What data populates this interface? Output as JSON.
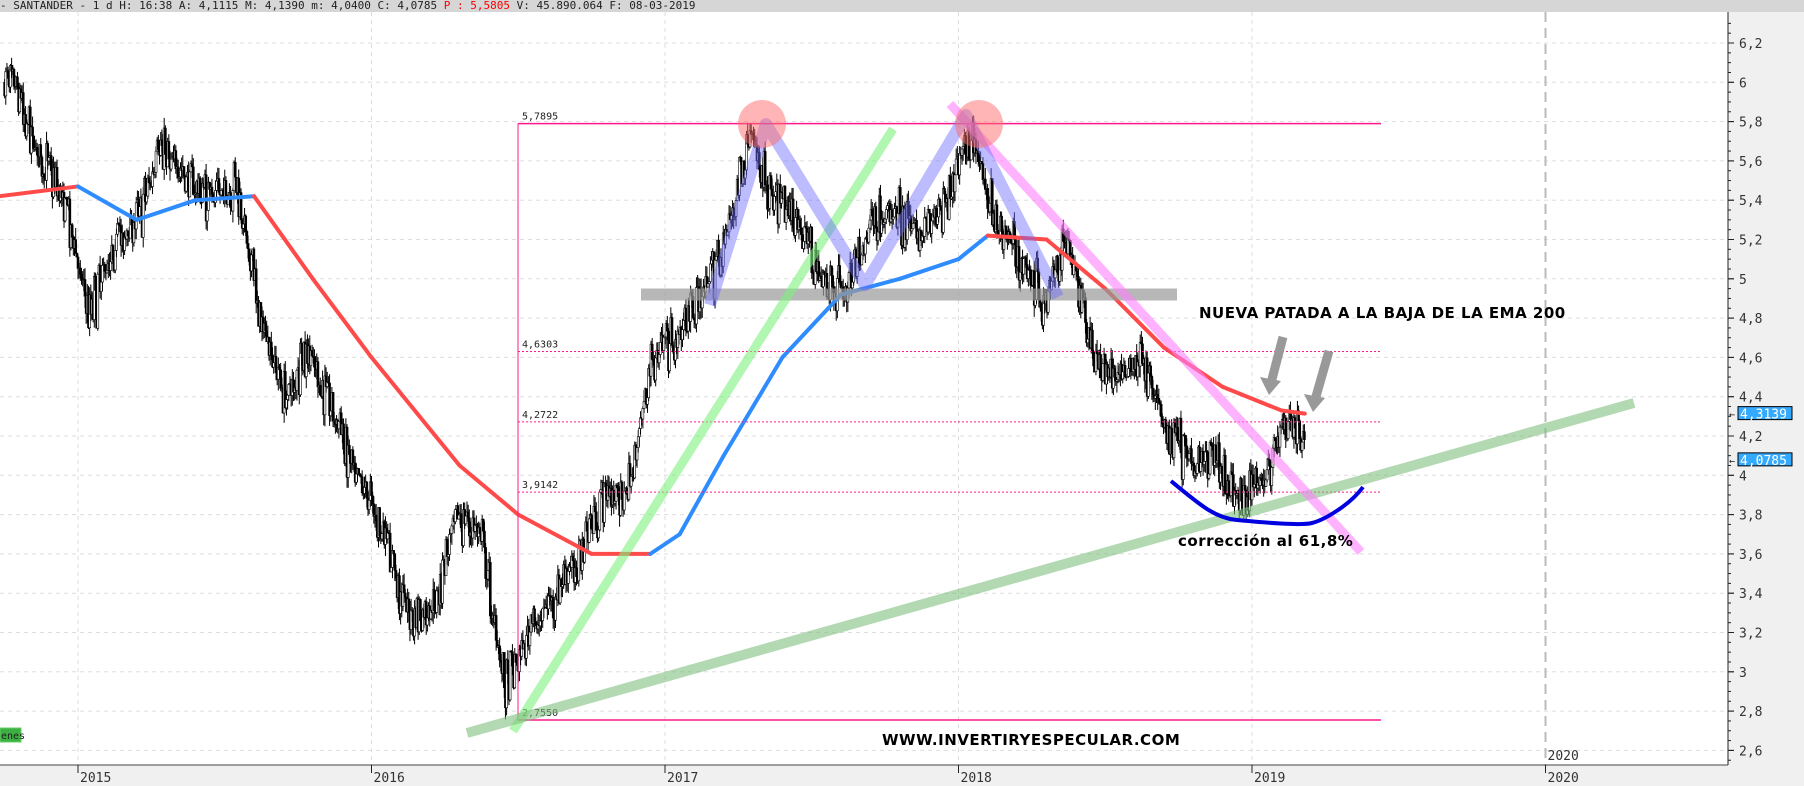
{
  "header": {
    "ticker": "- SANTANDER -",
    "period": "1 d",
    "time": "H: 16:38",
    "open": "A: 4,1115",
    "high": "M: 4,1390",
    "low": "m: 4,0400",
    "close": "C: 4,0785",
    "p_value": "P : 5,5805",
    "volume": "V: 45.890.064",
    "date": "F: 08-03-2019"
  },
  "chart_data": {
    "type": "candlestick",
    "x_axis": {
      "ticks": [
        "2015",
        "2016",
        "2017",
        "2018",
        "2019",
        "2020"
      ],
      "range": [
        2014.73,
        2020.4
      ]
    },
    "y_axis": {
      "ticks": [
        "6,2",
        "6",
        "5,8",
        "5,6",
        "5,4",
        "5,2",
        "5",
        "4,8",
        "4,6",
        "4,4",
        "4,2",
        "4",
        "3,8",
        "3,6",
        "3,4",
        "3,2",
        "3",
        "2,8",
        "2,6"
      ],
      "range": [
        2.55,
        6.3
      ],
      "position": "right"
    },
    "grid": true,
    "price_monthly_close": [
      [
        "2014-10",
        6.0
      ],
      [
        "2014-11",
        5.6
      ],
      [
        "2014-12",
        5.4
      ],
      [
        "2015-01",
        4.8
      ],
      [
        "2015-02",
        5.2
      ],
      [
        "2015-03",
        5.3
      ],
      [
        "2015-04",
        5.7
      ],
      [
        "2015-05",
        5.5
      ],
      [
        "2015-06",
        5.4
      ],
      [
        "2015-07",
        5.5
      ],
      [
        "2015-08",
        4.8
      ],
      [
        "2015-09",
        4.4
      ],
      [
        "2015-10",
        4.6
      ],
      [
        "2015-11",
        4.3
      ],
      [
        "2015-12",
        4.0
      ],
      [
        "2016-01",
        3.7
      ],
      [
        "2016-02",
        3.3
      ],
      [
        "2016-03",
        3.3
      ],
      [
        "2016-04",
        3.8
      ],
      [
        "2016-05",
        3.7
      ],
      [
        "2016-06",
        2.9
      ],
      [
        "2016-07",
        3.2
      ],
      [
        "2016-08",
        3.4
      ],
      [
        "2016-09",
        3.6
      ],
      [
        "2016-10",
        3.9
      ],
      [
        "2016-11",
        3.9
      ],
      [
        "2016-12",
        4.6
      ],
      [
        "2017-01",
        4.7
      ],
      [
        "2017-02",
        4.9
      ],
      [
        "2017-03",
        5.2
      ],
      [
        "2017-04",
        5.75
      ],
      [
        "2017-05",
        5.4
      ],
      [
        "2017-06",
        5.3
      ],
      [
        "2017-07",
        5.0
      ],
      [
        "2017-08",
        4.95
      ],
      [
        "2017-09",
        5.3
      ],
      [
        "2017-10",
        5.35
      ],
      [
        "2017-11",
        5.2
      ],
      [
        "2017-12",
        5.4
      ],
      [
        "2018-01",
        5.75
      ],
      [
        "2018-02",
        5.3
      ],
      [
        "2018-03",
        5.1
      ],
      [
        "2018-04",
        4.9
      ],
      [
        "2018-05",
        5.2
      ],
      [
        "2018-06",
        4.6
      ],
      [
        "2018-07",
        4.5
      ],
      [
        "2018-08",
        4.6
      ],
      [
        "2018-09",
        4.2
      ],
      [
        "2018-10",
        4.1
      ],
      [
        "2018-11",
        4.1
      ],
      [
        "2018-12",
        3.85
      ],
      [
        "2019-01",
        4.0
      ],
      [
        "2019-02",
        4.3
      ],
      [
        "2019-03",
        4.0785
      ]
    ],
    "ema200": [
      [
        2014.73,
        5.42
      ],
      [
        2015.0,
        5.47
      ],
      [
        2015.2,
        5.3
      ],
      [
        2015.4,
        5.4
      ],
      [
        2015.6,
        5.42
      ],
      [
        2015.8,
        5.0
      ],
      [
        2016.0,
        4.6
      ],
      [
        2016.3,
        4.05
      ],
      [
        2016.5,
        3.8
      ],
      [
        2016.75,
        3.6
      ],
      [
        2016.95,
        3.6
      ],
      [
        2017.05,
        3.7
      ],
      [
        2017.2,
        4.1
      ],
      [
        2017.4,
        4.6
      ],
      [
        2017.6,
        4.92
      ],
      [
        2017.8,
        5.0
      ],
      [
        2018.0,
        5.1
      ],
      [
        2018.1,
        5.22
      ],
      [
        2018.3,
        5.2
      ],
      [
        2018.5,
        4.95
      ],
      [
        2018.7,
        4.65
      ],
      [
        2018.9,
        4.45
      ],
      [
        2019.1,
        4.33
      ],
      [
        2019.18,
        4.3139
      ]
    ],
    "ema_colors": {
      "above": "#2f8cff",
      "below": "#ff4a4a"
    },
    "fibonacci_levels": [
      "5,7895",
      "4,6303",
      "4,2722",
      "3,9142",
      "2,7550"
    ],
    "fibonacci_values": [
      5.7895,
      4.6303,
      4.2722,
      3.9142,
      2.755
    ],
    "fib_color": "#ff1a8c",
    "support_level": 4.92,
    "last_price_tags": [
      "4,3139",
      "4,0785"
    ],
    "tag_color": "#33aaff",
    "annotations": {
      "ema_note": "NUEVA PATADA A LA BAJA DE LA EMA 200",
      "correction_note": "corrección al 61,8%",
      "watermark": "WWW.INVERTIRYESPECULAR.COM"
    },
    "legend_badge": "enes"
  }
}
